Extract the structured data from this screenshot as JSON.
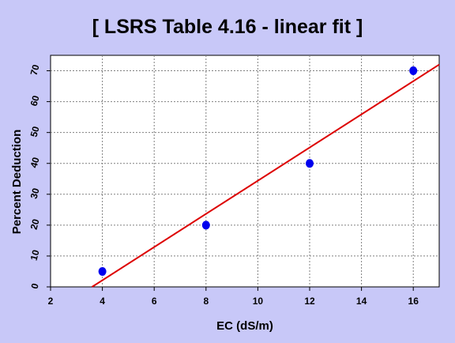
{
  "chart_data": {
    "type": "scatter",
    "title": "[ LSRS Table 4.16 - linear fit ]",
    "xlabel": "EC (dS/m)",
    "ylabel": "Percent Deduction",
    "xlim": [
      2,
      17
    ],
    "ylim": [
      0,
      75
    ],
    "xticks": [
      2,
      4,
      6,
      8,
      10,
      12,
      14,
      16
    ],
    "yticks": [
      0,
      10,
      20,
      30,
      40,
      50,
      60,
      70
    ],
    "grid": true,
    "series": [
      {
        "points": [
          {
            "x": 4,
            "y": 5
          },
          {
            "x": 8,
            "y": 20
          },
          {
            "x": 12,
            "y": 40
          },
          {
            "x": 16,
            "y": 70
          }
        ],
        "color": "#0000ee"
      }
    ],
    "fit_line": {
      "color": "#dd0000",
      "points": [
        {
          "x": 3.6,
          "y": 0
        },
        {
          "x": 17,
          "y": 72
        }
      ]
    },
    "colors": {
      "background": "#c8c8f8",
      "plot_area": "#ffffff"
    }
  }
}
